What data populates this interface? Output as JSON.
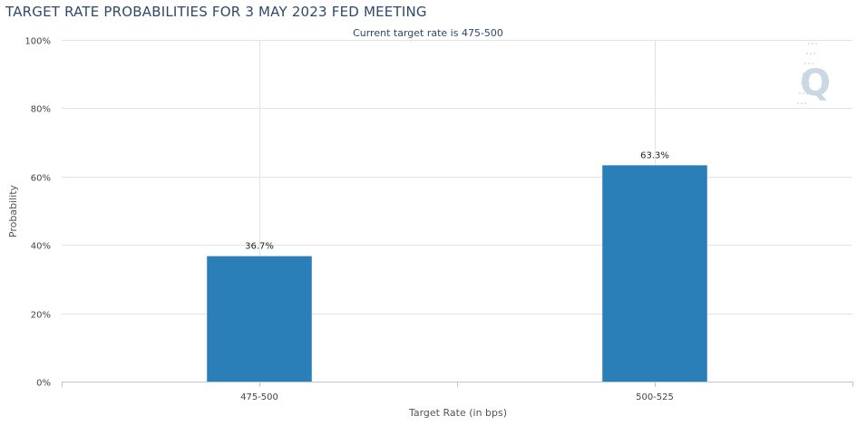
{
  "title": "TARGET RATE PROBABILITIES FOR 3 MAY 2023 FED MEETING",
  "colors": {
    "bar": "#2a7fb8",
    "grid": "#e3e3e3",
    "axis": "#c0c6d0",
    "title": "#2e4a6b",
    "text": "#444444",
    "watermark": "#c9d8e3"
  },
  "watermark_icon": "quikstrike-q-logo",
  "chart_data": {
    "type": "bar",
    "title": "TARGET RATE PROBABILITIES FOR 3 MAY 2023 FED MEETING",
    "subtitle": "Current target rate is 475-500",
    "xlabel": "Target Rate (in bps)",
    "ylabel": "Probability",
    "categories": [
      "475-500",
      "500-525"
    ],
    "values": [
      36.7,
      63.3
    ],
    "data_labels": [
      "36.7%",
      "63.3%"
    ],
    "ylim": [
      0,
      100
    ],
    "yticks": [
      0,
      20,
      40,
      60,
      80,
      100
    ],
    "ytick_labels": [
      "0%",
      "20%",
      "40%",
      "60%",
      "80%",
      "100%"
    ],
    "grid": true
  }
}
